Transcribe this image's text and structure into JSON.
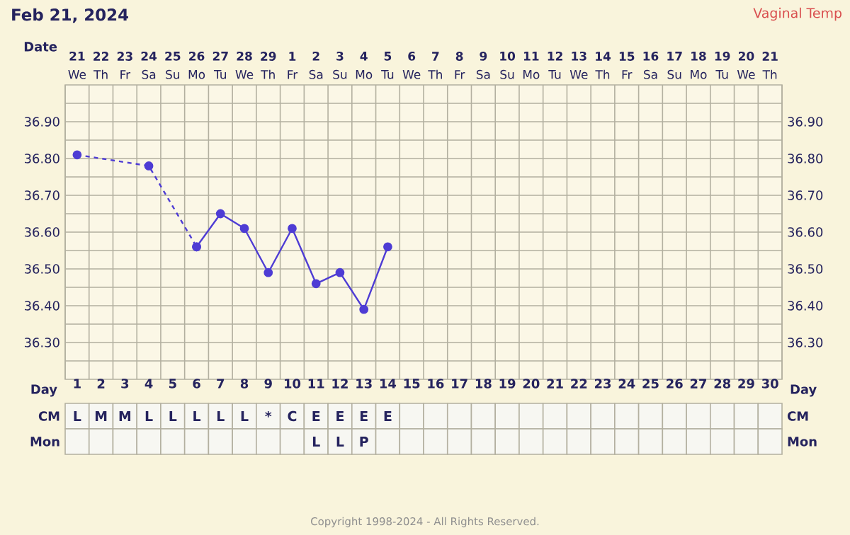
{
  "chart_data": [
    {
      "type": "line",
      "title": "Feb 21, 2024",
      "subtitle": "Vaginal Temp",
      "xlabel": "Day",
      "x2label": "Date",
      "categories": [
        "1",
        "2",
        "3",
        "4",
        "5",
        "6",
        "7",
        "8",
        "9",
        "10",
        "11",
        "12",
        "13",
        "14",
        "15",
        "16",
        "17",
        "18",
        "19",
        "20",
        "21",
        "22",
        "23",
        "24",
        "25",
        "26",
        "27",
        "28",
        "29",
        "30"
      ],
      "x2lim": [
        "2024-02-20T12:00",
        "2024-03-21T12:00"
      ],
      "x2ticks": [
        {
          "value": "2024-02-21",
          "label": "**21** We"
        },
        {
          "value": "2024-02-22",
          "label": "**22** Th"
        },
        {
          "value": "2024-02-23",
          "label": "**23** Fr"
        },
        {
          "value": "2024-02-24",
          "label": "**24** Sa"
        },
        {
          "value": "2024-02-25",
          "label": "**25** Su"
        },
        {
          "value": "2024-02-26",
          "label": "**26** Mo"
        },
        {
          "value": "2024-02-27",
          "label": "**27** Tu"
        },
        {
          "value": "2024-02-28",
          "label": "**28** We"
        },
        {
          "value": "2024-02-29",
          "label": "**29** Th"
        },
        {
          "value": "2024-03-01",
          "label": "**1** Fr"
        },
        {
          "value": "2024-03-02",
          "label": "**2** Sa"
        },
        {
          "value": "2024-03-03",
          "label": "**3** Su"
        },
        {
          "value": "2024-03-04",
          "label": "**4** Mo"
        },
        {
          "value": "2024-03-05",
          "label": "**5** Tu"
        },
        {
          "value": "2024-03-06",
          "label": "**6** We"
        },
        {
          "value": "2024-03-07",
          "label": "**7** Th"
        },
        {
          "value": "2024-03-08",
          "label": "**8** Fr"
        },
        {
          "value": "2024-03-09",
          "label": "**9** Sa"
        },
        {
          "value": "2024-03-10",
          "label": "**10** Su"
        },
        {
          "value": "2024-03-11",
          "label": "**11** Mo"
        },
        {
          "value": "2024-03-12",
          "label": "**12** Tu"
        },
        {
          "value": "2024-03-13",
          "label": "**13** We"
        },
        {
          "value": "2024-03-14",
          "label": "**14** Th"
        },
        {
          "value": "2024-03-15",
          "label": "**15** Fr"
        },
        {
          "value": "2024-03-16",
          "label": "**16** Sa"
        },
        {
          "value": "2024-03-17",
          "label": "**17** Su"
        },
        {
          "value": "2024-03-18",
          "label": "**18** Mo"
        },
        {
          "value": "2024-03-19",
          "label": "**19** Tu"
        },
        {
          "value": "2024-03-20",
          "label": "**20** We"
        },
        {
          "value": "2024-03-21",
          "label": "**21** Th"
        }
      ],
      "ylim": [
        36.2,
        37.0
      ],
      "yticks": [
        {
          "value": 36.25,
          "label": null
        },
        {
          "value": 36.3,
          "label": "36.30"
        },
        {
          "value": 36.35,
          "label": null
        },
        {
          "value": 36.4,
          "label": "36.40"
        },
        {
          "value": 36.45,
          "label": null
        },
        {
          "value": 36.5,
          "label": "36.50"
        },
        {
          "value": 36.55,
          "label": null
        },
        {
          "value": 36.6,
          "label": "36.60"
        },
        {
          "value": 36.65,
          "label": null
        },
        {
          "value": 36.7,
          "label": "36.70"
        },
        {
          "value": 36.75,
          "label": null
        },
        {
          "value": 36.8,
          "label": "36.80"
        },
        {
          "value": 36.85,
          "label": null
        },
        {
          "value": 36.9,
          "label": "36.90"
        },
        {
          "value": 36.95,
          "label": null
        }
      ],
      "y2lim": [
        36.2,
        37.0
      ],
      "y2ticks": [
        {
          "value": 36.3,
          "label": "36.30"
        },
        {
          "value": 36.4,
          "label": "36.40"
        },
        {
          "value": 36.5,
          "label": "36.50"
        },
        {
          "value": 36.6,
          "label": "36.60"
        },
        {
          "value": 36.7,
          "label": "36.70"
        },
        {
          "value": 36.8,
          "label": "36.80"
        },
        {
          "value": 36.9,
          "label": "36.90"
        }
      ],
      "grid": true,
      "marker": "circle",
      "series": [
        {
          "color": "#4e3cd4",
          "line_style": "dashed",
          "x": [
            "1",
            "4",
            "6"
          ],
          "values": [
            36.81,
            36.78,
            36.56
          ]
        },
        {
          "color": "#4e3cd4",
          "line_style": "solid",
          "x": [
            "6",
            "7",
            "8",
            "9",
            "10",
            "11",
            "12",
            "13",
            "14"
          ],
          "values": [
            36.56,
            36.65,
            36.61,
            36.49,
            36.61,
            36.46,
            36.49,
            36.39,
            36.56
          ]
        }
      ],
      "annotations": [
        "Copyright 1998-2024 - All Rights Reserved."
      ]
    },
    {
      "type": "heatmap",
      "categories": [
        null,
        null,
        null,
        null,
        null,
        null,
        null,
        null,
        null,
        null,
        null,
        null,
        null,
        null,
        null,
        null,
        null,
        null,
        null,
        null,
        null,
        null,
        null,
        null,
        null,
        null,
        null,
        null,
        null,
        null
      ],
      "y_categories": [
        "CM",
        "Mon"
      ],
      "y2_categories": [
        "CM",
        "Mon"
      ],
      "cells": [
        [
          null,
          null,
          null,
          null,
          null,
          null,
          null,
          null,
          null,
          null,
          null,
          null,
          null,
          null,
          null,
          null,
          null,
          null,
          null,
          null,
          null,
          null,
          null,
          null,
          null,
          null,
          null,
          null,
          null,
          null
        ],
        [
          null,
          null,
          null,
          null,
          null,
          null,
          null,
          null,
          null,
          null,
          null,
          null,
          null,
          null,
          null,
          null,
          null,
          null,
          null,
          null,
          null,
          null,
          null,
          null,
          null,
          null,
          null,
          null,
          null,
          null
        ]
      ],
      "cell_labels": [
        [
          "L",
          "M",
          "M",
          "L",
          "L",
          "L",
          "L",
          "L",
          "*",
          "C",
          "E",
          "E",
          "E",
          "E",
          null,
          null,
          null,
          null,
          null,
          null,
          null,
          null,
          null,
          null,
          null,
          null,
          null,
          null,
          null,
          null
        ],
        [
          null,
          null,
          null,
          null,
          null,
          null,
          null,
          null,
          null,
          null,
          "L",
          "L",
          "P",
          null,
          null,
          null,
          null,
          null,
          null,
          null,
          null,
          null,
          null,
          null,
          null,
          null,
          null,
          null,
          null,
          null
        ]
      ]
    }
  ]
}
